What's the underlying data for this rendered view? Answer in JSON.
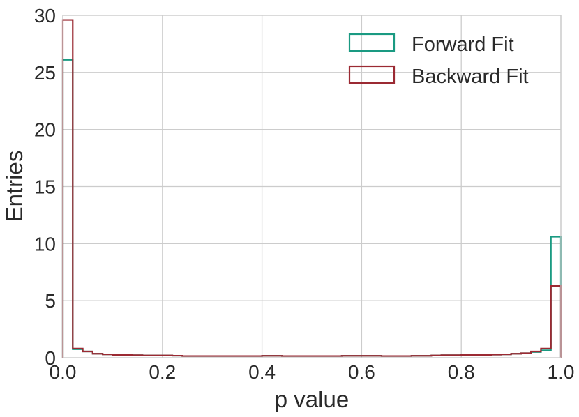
{
  "chart_data": {
    "type": "histogram",
    "title": "",
    "xlabel": "p value",
    "ylabel": "Entries",
    "xlim": [
      0.0,
      1.0
    ],
    "ylim": [
      0,
      30
    ],
    "xticks": [
      0.0,
      0.2,
      0.4,
      0.6,
      0.8,
      1.0
    ],
    "xtick_labels": [
      "0.0",
      "0.2",
      "0.4",
      "0.6",
      "0.8",
      "1.0"
    ],
    "yticks": [
      0,
      5,
      10,
      15,
      20,
      25,
      30
    ],
    "ytick_labels": [
      "0",
      "5",
      "10",
      "15",
      "20",
      "25",
      "30"
    ],
    "grid": true,
    "legend_position": "top-right",
    "bin_edges": [
      0.0,
      0.02,
      0.04,
      0.06,
      0.08,
      0.1,
      0.12,
      0.14,
      0.16,
      0.18,
      0.2,
      0.22,
      0.24,
      0.26,
      0.28,
      0.3,
      0.32,
      0.34,
      0.36,
      0.38,
      0.4,
      0.42,
      0.44,
      0.46,
      0.48,
      0.5,
      0.52,
      0.54,
      0.56,
      0.58,
      0.6,
      0.62,
      0.64,
      0.66,
      0.68,
      0.7,
      0.72,
      0.74,
      0.76,
      0.78,
      0.8,
      0.82,
      0.84,
      0.86,
      0.88,
      0.9,
      0.92,
      0.94,
      0.96,
      0.98,
      1.0
    ],
    "series": [
      {
        "name": "Forward Fit",
        "color": "#1a9a82",
        "values": [
          26.1,
          0.75,
          0.55,
          0.35,
          0.3,
          0.25,
          0.25,
          0.22,
          0.2,
          0.2,
          0.2,
          0.18,
          0.15,
          0.15,
          0.15,
          0.15,
          0.15,
          0.15,
          0.15,
          0.15,
          0.17,
          0.17,
          0.15,
          0.15,
          0.15,
          0.15,
          0.15,
          0.15,
          0.17,
          0.17,
          0.17,
          0.17,
          0.15,
          0.15,
          0.15,
          0.17,
          0.17,
          0.2,
          0.22,
          0.22,
          0.25,
          0.25,
          0.25,
          0.27,
          0.3,
          0.35,
          0.4,
          0.5,
          0.65,
          10.6
        ]
      },
      {
        "name": "Backward Fit",
        "color": "#9b2a33",
        "values": [
          29.6,
          0.8,
          0.55,
          0.35,
          0.3,
          0.25,
          0.25,
          0.22,
          0.2,
          0.2,
          0.2,
          0.18,
          0.15,
          0.15,
          0.15,
          0.15,
          0.15,
          0.15,
          0.15,
          0.15,
          0.17,
          0.17,
          0.15,
          0.15,
          0.15,
          0.15,
          0.15,
          0.15,
          0.17,
          0.17,
          0.17,
          0.17,
          0.15,
          0.15,
          0.15,
          0.17,
          0.17,
          0.2,
          0.22,
          0.22,
          0.25,
          0.25,
          0.25,
          0.27,
          0.3,
          0.35,
          0.4,
          0.55,
          0.8,
          6.3
        ]
      }
    ]
  }
}
